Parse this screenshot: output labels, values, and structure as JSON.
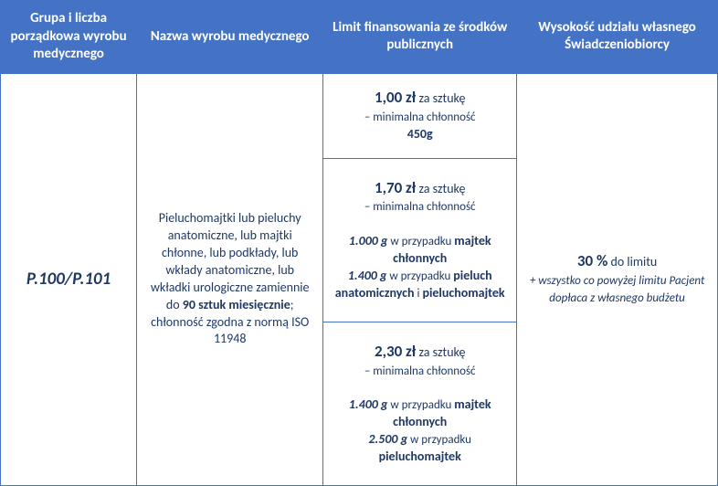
{
  "headers": {
    "c1": "Grupa i liczba porządkowa wyrobu medycznego",
    "c2": "Nazwa wyrobu medycznego",
    "c3": "Limit finansowania ze środków publicznych",
    "c4": "Wysokość udziału własnego Świadczeniobiorcy"
  },
  "code": "P.100/P.101",
  "description": {
    "pre": "Pieluchomajtki lub pieluchy anatomiczne, lub majtki chłonne, lub podkłady, lub wkłady anatomiczne, lub wkładki urologiczne zamiennie do ",
    "bold": "90 sztuk miesięcznie",
    "sep": "; ",
    "post": "chłonność zgodna z normą ISO 11948"
  },
  "limits": {
    "r1": {
      "price": "1,00 zł",
      "per": " za sztukę",
      "line": "– minimalna chłonność",
      "val": "450g"
    },
    "r2": {
      "price": "1,70 zł",
      "per": " za sztukę",
      "line": "– minimalna chłonność",
      "v1": "1.000 g",
      "t1": " w przypadku ",
      "b1": "majtek chłonnych",
      "v2": "1.400 g",
      "t2": " w przypadku ",
      "b2a": "pieluch anatomicznych",
      "and": " i ",
      "b2b": "pieluchomajtek"
    },
    "r3": {
      "price": "2,30 zł",
      "per": " za sztukę",
      "line": "– minimalna chłonność",
      "v1": "1.400 g",
      "t1": " w przypadku ",
      "b1": "majtek chłonnych",
      "v2": "2.500 g",
      "t2": " w przypadku ",
      "b2": "pieluchomajtek"
    }
  },
  "share": {
    "pct": "30 %",
    "suffix": " do limitu",
    "note": "+ wszystko co powyżej limitu Pacjent dopłaca z własnego budżetu"
  }
}
